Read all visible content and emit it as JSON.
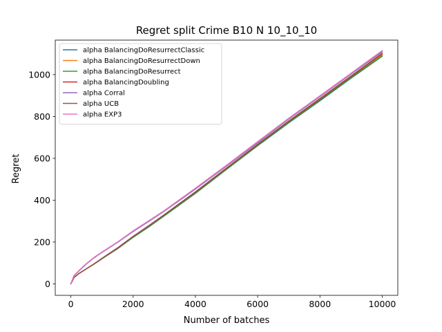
{
  "chart_data": {
    "type": "line",
    "title": "Regret split Crime B10 N 10_10_10",
    "xlabel": "Number of batches",
    "ylabel": "Regret",
    "xlim": [
      -500,
      10500
    ],
    "ylim": [
      -55,
      1165
    ],
    "xticks": [
      0,
      2000,
      4000,
      6000,
      8000,
      10000
    ],
    "yticks": [
      0,
      200,
      400,
      600,
      800,
      1000
    ],
    "grid": false,
    "legend_position": "top-left",
    "x": [
      0,
      100,
      250,
      500,
      750,
      1000,
      1500,
      2000,
      2500,
      3000,
      4000,
      5000,
      6000,
      7000,
      8000,
      9000,
      10000
    ],
    "series": [
      {
        "name": "alpha BalancingDoResurrectClassic",
        "color": "#1f77b4",
        "values": [
          0,
          30,
          48,
          72,
          95,
          120,
          168,
          222,
          272,
          325,
          432,
          547,
          660,
          770,
          875,
          983,
          1088
        ]
      },
      {
        "name": "alpha BalancingDoResurrectDown",
        "color": "#ff7f0e",
        "values": [
          0,
          30,
          48,
          72,
          95,
          120,
          170,
          224,
          275,
          328,
          436,
          550,
          664,
          775,
          880,
          988,
          1095
        ]
      },
      {
        "name": "alpha BalancingDoResurrect",
        "color": "#2ca02c",
        "values": [
          0,
          30,
          48,
          72,
          95,
          120,
          169,
          223,
          273,
          326,
          434,
          548,
          662,
          772,
          877,
          985,
          1090
        ]
      },
      {
        "name": "alpha BalancingDoubling",
        "color": "#d62728",
        "values": [
          0,
          30,
          48,
          72,
          95,
          121,
          171,
          226,
          277,
          330,
          438,
          552,
          666,
          777,
          883,
          991,
          1100
        ]
      },
      {
        "name": "alpha Corral",
        "color": "#9467bd",
        "values": [
          0,
          38,
          60,
          95,
          125,
          150,
          198,
          250,
          298,
          347,
          453,
          563,
          675,
          788,
          895,
          1003,
          1110
        ]
      },
      {
        "name": "alpha UCB",
        "color": "#8c564b",
        "values": [
          0,
          30,
          48,
          72,
          96,
          122,
          172,
          227,
          278,
          331,
          440,
          554,
          668,
          779,
          886,
          994,
          1103
        ]
      },
      {
        "name": "alpha EXP3",
        "color": "#e377c2",
        "values": [
          0,
          40,
          62,
          97,
          127,
          152,
          200,
          253,
          301,
          350,
          457,
          567,
          680,
          792,
          899,
          1007,
          1115
        ]
      }
    ]
  }
}
